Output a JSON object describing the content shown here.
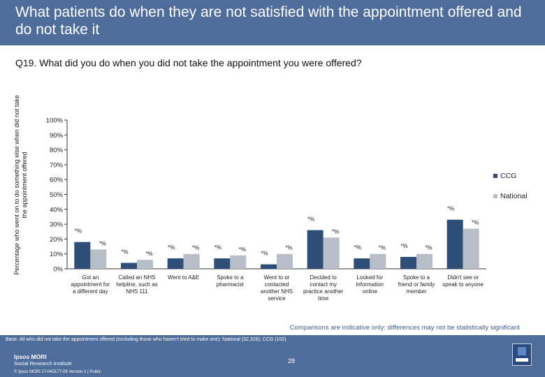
{
  "header": {
    "title": "What patients do when they are not satisfied with the appointment offered and do not take it"
  },
  "question": "Q19. What did you do when you did not take the appointment you were offered?",
  "colors": {
    "ccg": "#2f4e77",
    "national": "#b7bec8",
    "header_band": "#4f6d9a"
  },
  "chart_data": {
    "type": "bar",
    "title": "",
    "ylabel": "Percentage who went on to do something else when did not take the appointment offered",
    "ylim": [
      0,
      100
    ],
    "yticks": [
      "0%",
      "10%",
      "20%",
      "30%",
      "40%",
      "50%",
      "60%",
      "70%",
      "80%",
      "90%",
      "100%"
    ],
    "grid": false,
    "legend_position": "right",
    "categories": [
      [
        "Got an",
        "appointment for",
        "a different day"
      ],
      [
        "Called an NHS",
        "helpline, such as",
        "NHS 111"
      ],
      [
        "Went to A&E"
      ],
      [
        "Spoke to a",
        "pharmacist"
      ],
      [
        "Went to or",
        "contacted",
        "another NHS",
        "service"
      ],
      [
        "Decided to",
        "contact my",
        "practice another",
        "time"
      ],
      [
        "Looked for",
        "information",
        "online"
      ],
      [
        "Spoke to a",
        "friend or family",
        "member"
      ],
      [
        "Didn't see or",
        "speak to anyone"
      ]
    ],
    "series": [
      {
        "name": "CCG",
        "values": [
          18,
          4,
          7,
          7,
          3,
          26,
          7,
          8,
          33
        ],
        "labels": [
          "*%",
          "*%",
          "*%",
          "*%",
          "*%",
          "*%",
          "*%",
          "*%",
          "*%"
        ]
      },
      {
        "name": "National",
        "values": [
          13,
          6,
          10,
          9,
          10,
          21,
          10,
          10,
          27
        ],
        "labels": [
          "*%",
          "*%",
          "*%",
          "*%",
          "*%",
          "*%",
          "*%",
          "*%",
          "*%"
        ]
      }
    ]
  },
  "note": "Comparisons are indicative only: differences may not be statistically significant",
  "footer": {
    "base": "Base: All who did not take the appointment offered (excluding those who haven't tried to make one): National (32,326); CCG (102)",
    "logo_line1": "Ipsos MORI",
    "logo_line2": "Social Research Institute",
    "page_number": "28",
    "meta": "© Ipsos MORI     17-043177-06 Version 1 | Public"
  }
}
